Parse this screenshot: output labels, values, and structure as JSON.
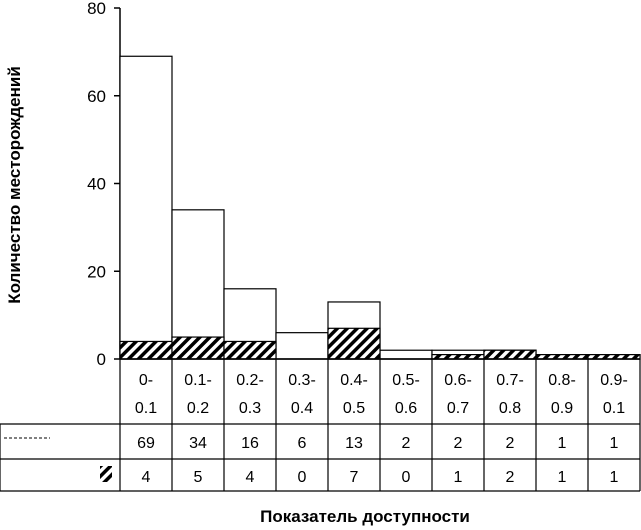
{
  "chart_data": {
    "type": "bar",
    "categories": [
      [
        "0-",
        "0.1"
      ],
      [
        "0.1-",
        "0.2"
      ],
      [
        "0.2-",
        "0.3"
      ],
      [
        "0.3-",
        "0.4"
      ],
      [
        "0.4-",
        "0.5"
      ],
      [
        "0.5-",
        "0.6"
      ],
      [
        "0.6-",
        "0.7"
      ],
      [
        "0.7-",
        "0.8"
      ],
      [
        "0.8-",
        "0.9"
      ],
      [
        "0.9-",
        "0.1"
      ]
    ],
    "series": [
      {
        "values": [
          69,
          34,
          16,
          6,
          13,
          2,
          2,
          2,
          1,
          1
        ],
        "fill": "white"
      },
      {
        "values": [
          4,
          5,
          4,
          0,
          7,
          0,
          1,
          2,
          1,
          1
        ],
        "fill": "hatched"
      }
    ],
    "ylabel": "Количество месторождений",
    "xlabel": "Показатель доступности",
    "ylim": [
      0,
      80
    ],
    "yticks": [
      0,
      20,
      40,
      60,
      80
    ],
    "grid": false,
    "data_table": true
  }
}
